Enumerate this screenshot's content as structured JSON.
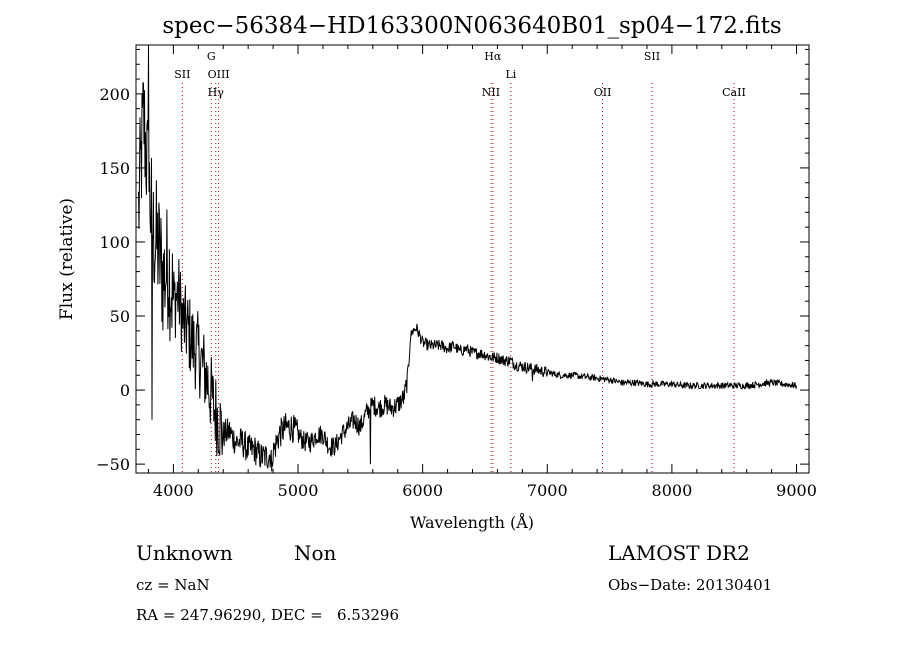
{
  "chart_data": {
    "type": "line",
    "title": "spec−56384−HD163300N063640B01_sp04−172.fits",
    "xlabel": "Wavelength (Å)",
    "ylabel": "Flux (relative)",
    "xlim": [
      3700,
      9100
    ],
    "ylim": [
      -56,
      233
    ],
    "xticks": [
      4000,
      5000,
      6000,
      7000,
      8000,
      9000
    ],
    "xtick_labels": [
      "4000",
      "5000",
      "6000",
      "7000",
      "8000",
      "9000"
    ],
    "yticks": [
      -50,
      0,
      50,
      100,
      150,
      200
    ],
    "ytick_labels": [
      "−50",
      "0",
      "50",
      "100",
      "150",
      "200"
    ],
    "grid": false,
    "line_color": "#000000",
    "marker_color": "#cc0000",
    "series": [
      {
        "x": [
          3720,
          3760,
          3800,
          3840,
          3880,
          3920,
          3960,
          4000,
          4040,
          4080,
          4120,
          4160,
          4200,
          4240,
          4280,
          4320,
          4360,
          4400,
          4450,
          4500,
          4550,
          4600,
          4650,
          4700,
          4750,
          4800,
          4850,
          4900,
          4950,
          5000,
          5050,
          5100,
          5150,
          5200,
          5250,
          5300,
          5350,
          5400,
          5450,
          5500,
          5550,
          5600,
          5650,
          5700,
          5750,
          5800,
          5850,
          5880,
          5900,
          5920,
          5950,
          6000,
          6050,
          6100,
          6150,
          6200,
          6250,
          6300,
          6350,
          6400,
          6450,
          6500,
          6550,
          6600,
          6650,
          6700,
          6750,
          6800,
          6850,
          6900,
          7000,
          7100,
          7200,
          7300,
          7400,
          7500,
          7600,
          7700,
          7800,
          7900,
          8000,
          8100,
          8200,
          8300,
          8400,
          8500,
          8600,
          8700,
          8800,
          8900,
          9000
        ],
        "y": [
          120,
          185,
          140,
          105,
          95,
          75,
          85,
          60,
          65,
          45,
          40,
          30,
          25,
          15,
          5,
          -10,
          -20,
          -30,
          -28,
          -35,
          -35,
          -40,
          -40,
          -45,
          -45,
          -42,
          -30,
          -25,
          -25,
          -30,
          -35,
          -35,
          -30,
          -30,
          -38,
          -38,
          -30,
          -25,
          -20,
          -25,
          -15,
          -10,
          -12,
          -10,
          -12,
          -10,
          -5,
          8,
          35,
          40,
          42,
          32,
          30,
          30,
          30,
          28,
          30,
          26,
          28,
          25,
          25,
          24,
          22,
          22,
          20,
          20,
          17,
          16,
          15,
          14,
          12,
          10,
          10,
          9,
          8,
          7,
          5,
          5,
          4,
          4,
          4,
          3,
          3,
          3,
          3,
          3,
          3,
          4,
          5,
          4,
          3
        ]
      }
    ],
    "lines": [
      {
        "x": 4072,
        "label": "SII"
      },
      {
        "x": 4304,
        "label": "G"
      },
      {
        "x": 4340,
        "label": "Hγ"
      },
      {
        "x": 4363,
        "label": "OIII"
      },
      {
        "x": 6548,
        "label": "NII"
      },
      {
        "x": 6563,
        "label": "Hα"
      },
      {
        "x": 6708,
        "label": "Li"
      },
      {
        "x": 7444,
        "label": "OII"
      },
      {
        "x": 7840,
        "label": "SII"
      },
      {
        "x": 8498,
        "label": "CaII"
      }
    ]
  },
  "info": {
    "class_label": "Unknown",
    "subclass_label": "Non",
    "survey_label": "LAMOST DR2",
    "cz_text": "cz = NaN",
    "obs_date_text": "Obs−Date: 20130401",
    "coords_text": "RA = 247.96290, DEC =   6.53296"
  }
}
